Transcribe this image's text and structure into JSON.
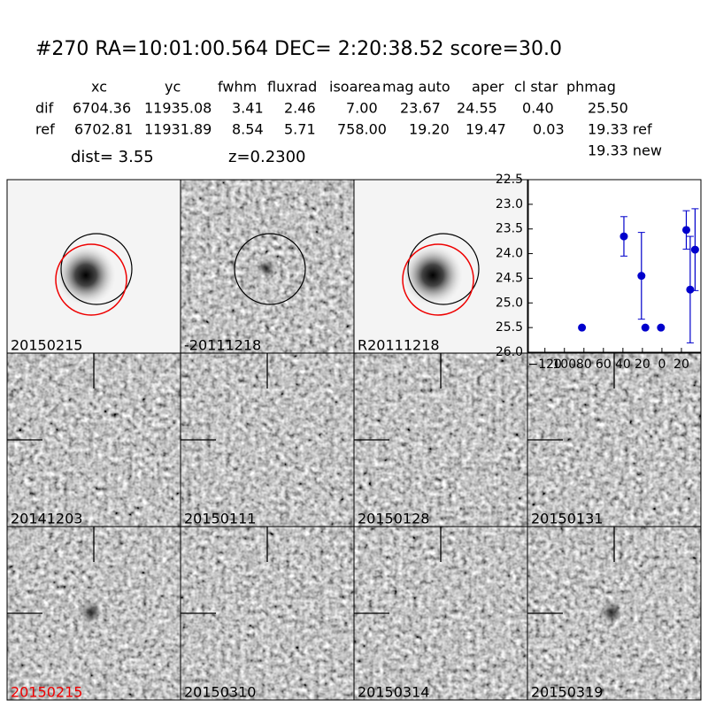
{
  "header": {
    "title": "#270   RA=10:01:00.564 DEC= 2:20:38.52       score=30.0"
  },
  "table": {
    "columns": [
      "xc",
      "yc",
      "fwhm",
      "fluxrad",
      "isoarea",
      "mag auto",
      "aper",
      "cl star",
      "phmag"
    ],
    "rows": [
      [
        "dif",
        "6704.36",
        "11935.08",
        "3.41",
        "2.46",
        "7.00",
        "23.67",
        "24.55",
        "0.40",
        "25.50"
      ],
      [
        "ref",
        "6702.81",
        "11931.89",
        "8.54",
        "5.71",
        "758.00",
        "19.20",
        "19.47",
        "0.03",
        "19.33 ref"
      ]
    ],
    "extra": "19.33 new"
  },
  "info": {
    "dist": "dist=  3.55",
    "z": "z=0.2300"
  },
  "panels": [
    "20150215",
    "-20111218",
    "R20111218",
    "20141203",
    "20150111",
    "20150128",
    "20150131",
    "20150215",
    "20150310",
    "20150314",
    "20150319"
  ],
  "chart_data": {
    "type": "scatter",
    "color": "#0000cc",
    "x": [
      -82,
      -39,
      -21,
      -17,
      -1,
      25,
      29,
      34
    ],
    "y": [
      25.5,
      23.65,
      24.45,
      25.5,
      25.5,
      23.52,
      24.73,
      23.92
    ],
    "errors": [
      null,
      0.4,
      0.88,
      null,
      null,
      0.39,
      1.08,
      0.83
    ],
    "xlim": [
      -137,
      40
    ],
    "ylim": [
      26.0,
      22.5
    ],
    "xticks": [
      {
        "value": -120,
        "label": "−120"
      },
      {
        "value": -100,
        "label": "100"
      },
      {
        "value": -80,
        "label": "80"
      },
      {
        "value": -60,
        "label": "60"
      },
      {
        "value": -40,
        "label": "40"
      },
      {
        "value": -20,
        "label": "20"
      },
      {
        "value": 0,
        "label": "0"
      },
      20
    ],
    "yticks": [
      22.5,
      {
        "value": 23,
        "label": "23.0"
      },
      23.5,
      {
        "value": 24,
        "label": "24.0"
      },
      24.5,
      {
        "value": 25,
        "label": "25.0"
      },
      25.5,
      {
        "value": 26,
        "label": "26.0"
      }
    ]
  }
}
